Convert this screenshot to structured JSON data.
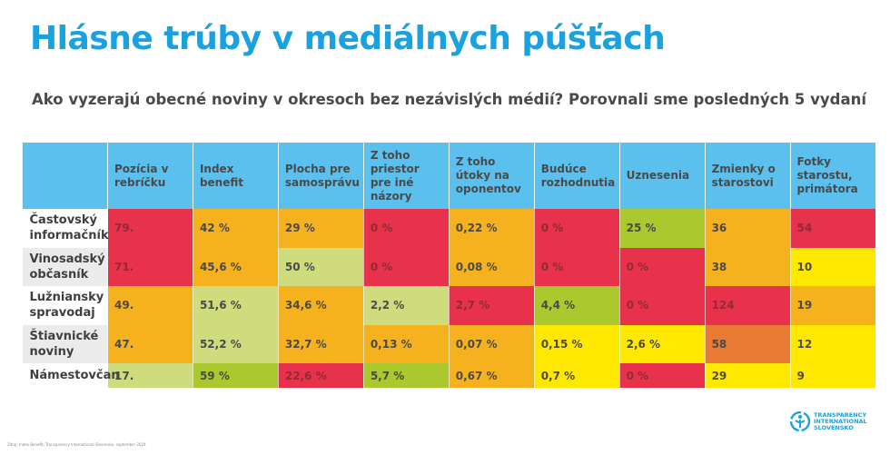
{
  "title": "Hlásne trúby v mediálnych púšťach",
  "subtitle": "Ako vyzerajú obecné noviny v okresoch bez nezávislých médií? Porovnali sme posledných 5 vydaní",
  "source": "Zdroj: Index Benefit, Transparency International Slovensko, september 2024",
  "logo": {
    "lines": [
      "TRANSPARENCY",
      "INTERNATIONAL",
      "SLOVENSKO"
    ]
  },
  "colors": {
    "title": "#1aa1df",
    "header": "#5bc0ee",
    "red": "#e8314a",
    "orange": "#f6b11e",
    "light_green": "#cfdc7e",
    "green": "#abc82f",
    "yellow": "#ffe800",
    "dark_orange": "#e87a33"
  },
  "chart_data": {
    "type": "table",
    "columns": [
      "",
      "Pozícia v rebríčku",
      "Index benefit",
      "Plocha pre samosprávu",
      "Z toho priestor pre iné názory",
      "Z toho útoky na oponentov",
      "Budúce rozhodnutia",
      "Uznesenia",
      "Zmienky o starostovi",
      "Fotky starostu, primátora"
    ],
    "rows": [
      {
        "label": "Častovský informačník",
        "cells": [
          {
            "v": "79.",
            "c": "red"
          },
          {
            "v": "42 %",
            "c": "orange"
          },
          {
            "v": "29  %",
            "c": "orange"
          },
          {
            "v": "0 %",
            "c": "red"
          },
          {
            "v": "0,22 %",
            "c": "orange"
          },
          {
            "v": "0 %",
            "c": "red"
          },
          {
            "v": "25 %",
            "c": "green"
          },
          {
            "v": "36",
            "c": "orange"
          },
          {
            "v": "54",
            "c": "red"
          }
        ]
      },
      {
        "label": "Vinosadský občasník",
        "cells": [
          {
            "v": " 71.",
            "c": "red"
          },
          {
            "v": "45,6 %",
            "c": "orange"
          },
          {
            "v": "50 %",
            "c": "light_green"
          },
          {
            "v": "0 %",
            "c": "red"
          },
          {
            "v": "0,08 %",
            "c": "orange"
          },
          {
            "v": "0 %",
            "c": "red"
          },
          {
            "v": "0 %",
            "c": "red"
          },
          {
            "v": "38",
            "c": "orange"
          },
          {
            "v": "10",
            "c": "yellow"
          }
        ]
      },
      {
        "label": "Lužniansky spravodaj",
        "cells": [
          {
            "v": "49.",
            "c": "orange"
          },
          {
            "v": "51,6 %",
            "c": "light_green"
          },
          {
            "v": "34,6 %",
            "c": "orange"
          },
          {
            "v": "2,2 %",
            "c": "light_green"
          },
          {
            "v": "2,7 %",
            "c": "red"
          },
          {
            "v": "4,4 %",
            "c": "green"
          },
          {
            "v": "0 %",
            "c": "red"
          },
          {
            "v": "124",
            "c": "red"
          },
          {
            "v": "19",
            "c": "orange"
          }
        ]
      },
      {
        "label": "Štiavnické noviny",
        "cells": [
          {
            "v": "47.",
            "c": "orange"
          },
          {
            "v": "52,2 %",
            "c": "light_green"
          },
          {
            "v": "32,7 %",
            "c": "orange"
          },
          {
            "v": "0,13 %",
            "c": "orange"
          },
          {
            "v": "0,07 %",
            "c": "orange"
          },
          {
            "v": "0,15 %",
            "c": "yellow"
          },
          {
            "v": "2,6 %",
            "c": "yellow"
          },
          {
            "v": "58",
            "c": "dark_orange"
          },
          {
            "v": "12",
            "c": "yellow"
          }
        ]
      },
      {
        "label": "Námestovčan",
        "cells": [
          {
            "v": "17.",
            "c": "light_green"
          },
          {
            "v": "59  %",
            "c": "green"
          },
          {
            "v": "22,6 %",
            "c": "red"
          },
          {
            "v": "5,7 %",
            "c": "green"
          },
          {
            "v": "0,67 %",
            "c": "orange"
          },
          {
            "v": "0,7 %",
            "c": "yellow"
          },
          {
            "v": "0 %",
            "c": "red"
          },
          {
            "v": "29",
            "c": "yellow"
          },
          {
            "v": "9",
            "c": "yellow"
          }
        ]
      }
    ]
  }
}
